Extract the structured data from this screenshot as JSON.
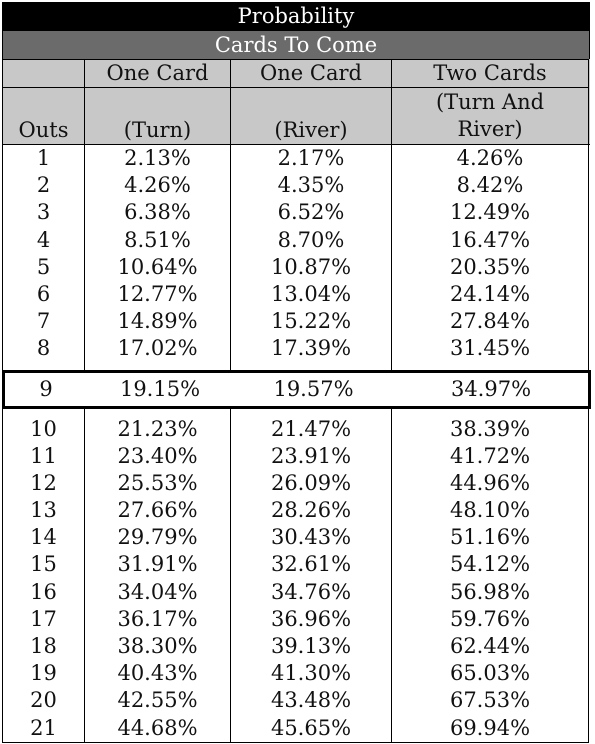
{
  "title": "Probability",
  "subtitle": "Cards To Come",
  "headers": {
    "row1": [
      "",
      "One Card",
      "One Card",
      "Two Cards"
    ],
    "row2": [
      "Outs",
      "(Turn)",
      "(River)",
      "(Turn And River)"
    ],
    "two_cards_lines": [
      "(Turn And",
      "River)"
    ]
  },
  "rows": [
    [
      "1",
      "2.13%",
      "2.17%",
      "4.26%"
    ],
    [
      "2",
      "4.26%",
      "4.35%",
      "8.42%"
    ],
    [
      "3",
      "6.38%",
      "6.52%",
      "12.49%"
    ],
    [
      "4",
      "8.51%",
      "8.70%",
      "16.47%"
    ],
    [
      "5",
      "10.64%",
      "10.87%",
      "20.35%"
    ],
    [
      "6",
      "12.77%",
      "13.04%",
      "24.14%"
    ],
    [
      "7",
      "14.89%",
      "15.22%",
      "27.84%"
    ],
    [
      "8",
      "17.02%",
      "17.39%",
      "31.45%"
    ],
    [
      "9",
      "19.15%",
      "19.57%",
      "34.97%"
    ],
    [
      "10",
      "21.23%",
      "21.47%",
      "38.39%"
    ],
    [
      "11",
      "23.40%",
      "23.91%",
      "41.72%"
    ],
    [
      "12",
      "25.53%",
      "26.09%",
      "44.96%"
    ],
    [
      "13",
      "27.66%",
      "28.26%",
      "48.10%"
    ],
    [
      "14",
      "29.79%",
      "30.43%",
      "51.16%"
    ],
    [
      "15",
      "31.91%",
      "32.61%",
      "54.12%"
    ],
    [
      "16",
      "34.04%",
      "34.76%",
      "56.98%"
    ],
    [
      "17",
      "36.17%",
      "36.96%",
      "59.76%"
    ],
    [
      "18",
      "38.30%",
      "39.13%",
      "62.44%"
    ],
    [
      "19",
      "40.43%",
      "41.30%",
      "65.03%"
    ],
    [
      "20",
      "42.55%",
      "43.48%",
      "67.53%"
    ],
    [
      "21",
      "44.68%",
      "45.65%",
      "69.94%"
    ]
  ],
  "highlighted_outs": "9",
  "colors": {
    "title_bg": "#000000",
    "subtitle_bg": "#6b6b6b",
    "header_bg": "#c8c8c8",
    "text": "#111111"
  }
}
